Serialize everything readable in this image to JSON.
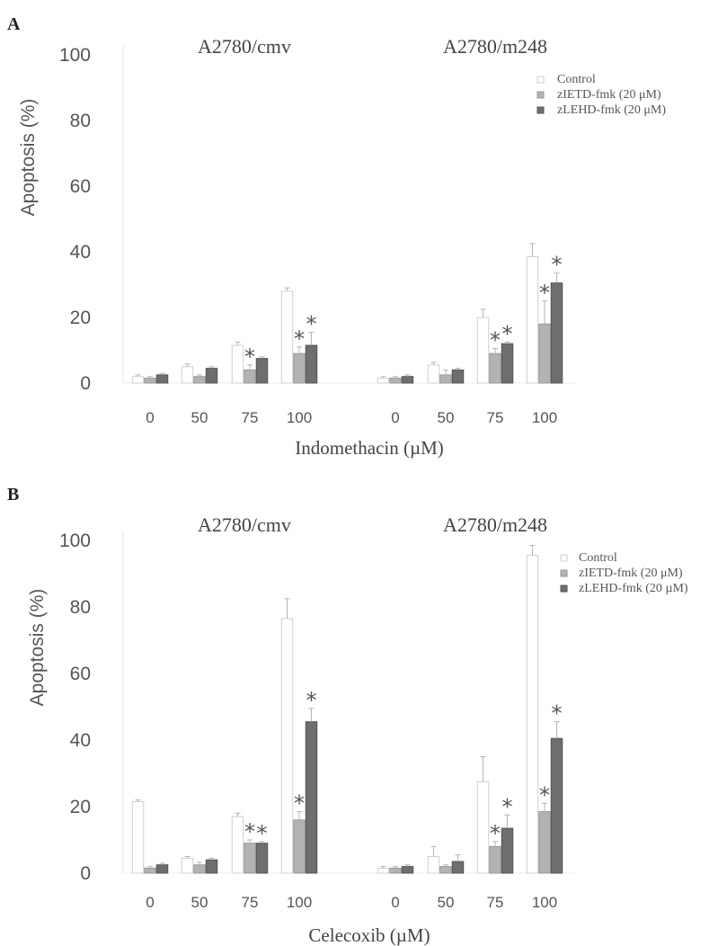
{
  "chart_data": [
    {
      "type": "bar",
      "panel_label": "A",
      "group_titles": [
        "A2780/cmv",
        "A2780/m248"
      ],
      "ylabel": "Apoptosis (%)",
      "xlabel": "Indomethacin (µM)",
      "ylim": [
        0,
        100
      ],
      "yticks": [
        0,
        20,
        40,
        60,
        80,
        100
      ],
      "categories": [
        "0",
        "50",
        "75",
        "100"
      ],
      "legend_position": "top-right",
      "series": [
        {
          "name": "Control",
          "color": "#ffffff",
          "values": [
            [
              2,
              5,
              11.5,
              28
            ],
            [
              1.5,
              5.5,
              20,
              38.5
            ]
          ],
          "errors": [
            [
              0.5,
              0.8,
              1,
              1
            ],
            [
              0.5,
              0.8,
              2.5,
              4
            ]
          ]
        },
        {
          "name": "zIETD-fmk (20 μM)",
          "color": "#b3b3b3",
          "values": [
            [
              1.5,
              2,
              4,
              9
            ],
            [
              1.5,
              2.5,
              9,
              18
            ]
          ],
          "errors": [
            [
              0.5,
              0.5,
              1.5,
              2
            ],
            [
              0.5,
              1.5,
              1.5,
              7
            ]
          ]
        },
        {
          "name": "zLEHD-fmk (20 μM)",
          "color": "#6e6e6e",
          "values": [
            [
              2.5,
              4.5,
              7.5,
              11.5
            ],
            [
              2,
              4,
              12,
              30.5
            ]
          ],
          "errors": [
            [
              0.5,
              0.5,
              0.5,
              4
            ],
            [
              0.5,
              0.5,
              0.5,
              3
            ]
          ]
        }
      ],
      "significance": [
        [
          [
            false,
            false,
            false
          ],
          [
            false,
            false,
            false
          ],
          [
            false,
            true,
            false
          ],
          [
            false,
            true,
            true
          ]
        ],
        [
          [
            false,
            false,
            false
          ],
          [
            false,
            false,
            false
          ],
          [
            false,
            true,
            true
          ],
          [
            false,
            true,
            true
          ]
        ]
      ]
    },
    {
      "type": "bar",
      "panel_label": "B",
      "group_titles": [
        "A2780/cmv",
        "A2780/m248"
      ],
      "ylabel": "Apoptosis (%)",
      "xlabel": "Celecoxib (µM)",
      "ylim": [
        0,
        100
      ],
      "yticks": [
        0,
        20,
        40,
        60,
        80,
        100
      ],
      "categories": [
        "0",
        "50",
        "75",
        "100"
      ],
      "legend_position": "top-right",
      "series": [
        {
          "name": "Control",
          "color": "#ffffff",
          "values": [
            [
              21.5,
              4.5,
              17,
              76.5
            ],
            [
              1.5,
              5,
              27.5,
              95.5
            ]
          ],
          "errors": [
            [
              0.5,
              0.5,
              1,
              6
            ],
            [
              0.5,
              3,
              7.5,
              3
            ]
          ]
        },
        {
          "name": "zIETD-fmk (20 μM)",
          "color": "#b3b3b3",
          "values": [
            [
              1.5,
              2.5,
              9,
              16
            ],
            [
              1.5,
              2,
              8,
              18.5
            ]
          ],
          "errors": [
            [
              0.5,
              0.8,
              1,
              2.5
            ],
            [
              0.5,
              0.5,
              1.5,
              2.5
            ]
          ]
        },
        {
          "name": "zLEHD-fmk (20 µM)",
          "color": "#6e6e6e",
          "values": [
            [
              2.5,
              4,
              9,
              45.5
            ],
            [
              2,
              3.5,
              13.5,
              40.5
            ]
          ],
          "errors": [
            [
              0.5,
              0.5,
              0.5,
              4
            ],
            [
              0.5,
              2,
              4,
              5
            ]
          ]
        }
      ],
      "significance": [
        [
          [
            false,
            false,
            false
          ],
          [
            false,
            false,
            false
          ],
          [
            false,
            true,
            true
          ],
          [
            false,
            true,
            true
          ]
        ],
        [
          [
            false,
            false,
            false
          ],
          [
            false,
            false,
            false
          ],
          [
            false,
            true,
            true
          ],
          [
            false,
            true,
            true
          ]
        ]
      ]
    }
  ],
  "star_symbol": "*"
}
